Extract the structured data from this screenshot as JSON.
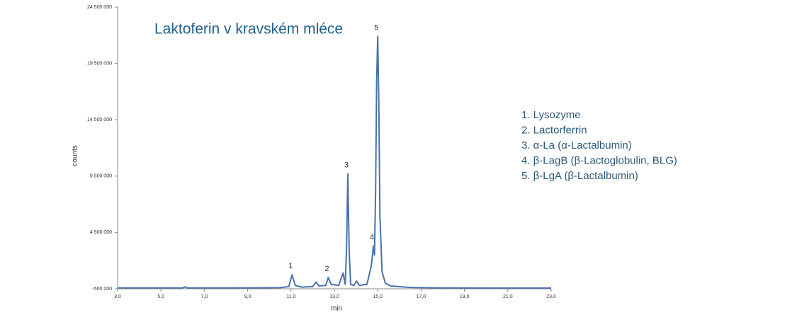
{
  "chart_data": {
    "type": "line",
    "title": "Laktoferin v kravském mléce",
    "x_label": "min",
    "y_label": "counts",
    "color": "#4a72a8",
    "xlim": [
      3,
      23
    ],
    "ylim": [
      -500000,
      24500000
    ],
    "xticks": [
      {
        "value": 3,
        "label": "3,0"
      },
      {
        "value": 5,
        "label": "5,0"
      },
      {
        "value": 7,
        "label": "7,0"
      },
      {
        "value": 9,
        "label": "9,0"
      },
      {
        "value": 11,
        "label": "11,0"
      },
      {
        "value": 13,
        "label": "13,0"
      },
      {
        "value": 15,
        "label": "15,0"
      },
      {
        "value": 17,
        "label": "17,0"
      },
      {
        "value": 19,
        "label": "19,0"
      },
      {
        "value": 21,
        "label": "21,0"
      },
      {
        "value": 23,
        "label": "23,0"
      }
    ],
    "yticks": [
      {
        "value": -500000,
        "label": "-500 000"
      },
      {
        "value": 4500000,
        "label": "4 500 000"
      },
      {
        "value": 9500000,
        "label": "9 500 000"
      },
      {
        "value": 14500000,
        "label": "14 500 000"
      },
      {
        "value": 19500000,
        "label": "19 500 000"
      },
      {
        "value": 24500000,
        "label": "24 500 000"
      }
    ],
    "x": [
      3.0,
      5.0,
      6.0,
      6.1,
      6.2,
      8.0,
      10.5,
      10.9,
      11.0,
      11.05,
      11.1,
      11.2,
      11.5,
      12.0,
      12.15,
      12.3,
      12.6,
      12.72,
      12.85,
      13.2,
      13.4,
      13.5,
      13.56,
      13.62,
      13.68,
      13.75,
      13.9,
      14.02,
      14.15,
      14.5,
      14.7,
      14.8,
      14.85,
      14.9,
      14.95,
      15.0,
      15.05,
      15.1,
      15.2,
      15.35,
      15.6,
      16.5,
      18.0,
      20.0,
      23.0
    ],
    "values": [
      -420000,
      -420000,
      -420000,
      -330000,
      -420000,
      -420000,
      -400000,
      -300000,
      400000,
      750000,
      400000,
      -200000,
      -350000,
      -300000,
      100000,
      -250000,
      -200000,
      500000,
      -100000,
      -200000,
      900000,
      -100000,
      3000000,
      9700000,
      3000000,
      -100000,
      -200000,
      200000,
      -200000,
      -100000,
      1500000,
      3300000,
      2500000,
      8000000,
      18000000,
      21900000,
      16000000,
      6000000,
      1000000,
      0,
      -250000,
      -380000,
      -420000,
      -430000,
      -430000
    ],
    "annotations": [
      {
        "text": "1",
        "x": 11.05,
        "y": 750000
      },
      {
        "text": "2",
        "x": 12.72,
        "y": 500000
      },
      {
        "text": "3",
        "x": 13.62,
        "y": 9700000
      },
      {
        "text": "4",
        "x": 14.8,
        "y": 3300000
      },
      {
        "text": "5",
        "x": 15.0,
        "y": 21900000
      }
    ],
    "notes": [
      "1. Lysozyme",
      "2. Lactorferrin",
      "3. α-La (α-Lactalbumin)",
      "4. β-LagB (β-Lactoglobulin, BLG)",
      "5. β-LgA  (β-Lactalbumin)"
    ]
  }
}
